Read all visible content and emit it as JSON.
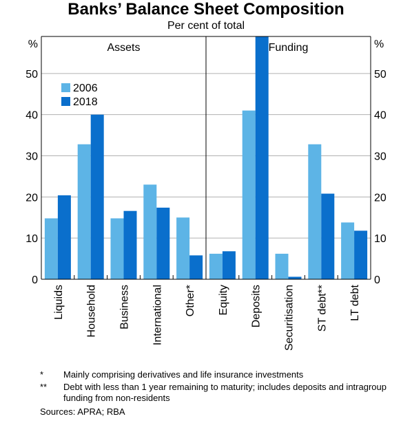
{
  "title": "Banks’ Balance Sheet Composition",
  "subtitle": "Per cent of total",
  "chart_data": [
    {
      "type": "bar",
      "panel": "Assets",
      "categories": [
        "Liquids",
        "Household",
        "Business",
        "International",
        "Other*"
      ],
      "series": [
        {
          "name": "2006",
          "color": "#5db4e6",
          "values": [
            14.8,
            32.8,
            14.8,
            23.0,
            15.0
          ]
        },
        {
          "name": "2018",
          "color": "#0a6fcc",
          "values": [
            20.4,
            40.0,
            16.6,
            17.4,
            5.8
          ]
        }
      ],
      "ylabel_left": "%",
      "ylim": [
        0,
        59
      ],
      "yticks": [
        0,
        10,
        20,
        30,
        40,
        50
      ],
      "grid": true,
      "legend": "top-left"
    },
    {
      "type": "bar",
      "panel": "Funding",
      "categories": [
        "Equity",
        "Deposits",
        "Securitisation",
        "ST debt**",
        "LT debt"
      ],
      "series": [
        {
          "name": "2006",
          "color": "#5db4e6",
          "values": [
            6.2,
            41.0,
            6.2,
            32.8,
            13.8
          ]
        },
        {
          "name": "2018",
          "color": "#0a6fcc",
          "values": [
            6.8,
            59.0,
            0.6,
            20.8,
            11.8
          ]
        }
      ],
      "ylabel_right": "%",
      "ylim": [
        0,
        59
      ],
      "yticks": [
        0,
        10,
        20,
        30,
        40,
        50
      ],
      "grid": true
    }
  ],
  "legend_items": [
    "2006",
    "2018"
  ],
  "axis_unit": "%",
  "notes": [
    {
      "mark": "*",
      "text": "Mainly comprising derivatives and life insurance investments"
    },
    {
      "mark": "**",
      "text": "Debt with less than 1 year remaining to maturity; includes deposits and intragroup funding from non-residents"
    }
  ],
  "sources": "Sources:   APRA; RBA"
}
